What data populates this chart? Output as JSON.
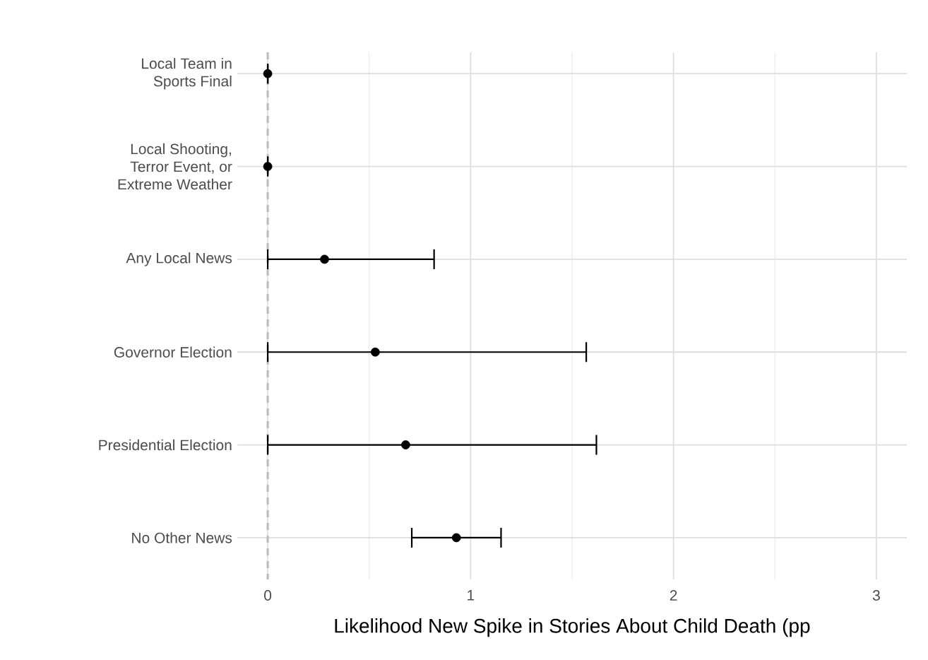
{
  "chart_data": {
    "type": "scatter",
    "orientation": "horizontal",
    "marker": "circle",
    "grid": true,
    "xlabel": "Likelihood New Spike in Stories About Child Death (pp",
    "categories": [
      "Local Team in Sports Final",
      "Local Shooting, Terror Event, or Extreme Weather",
      "Any Local News",
      "Governor Election",
      "Presidential Election",
      "No Other News"
    ],
    "values": [
      0,
      0,
      0.28,
      0.53,
      0.68,
      0.93
    ],
    "errors": [
      [
        0,
        0
      ],
      [
        0,
        0
      ],
      [
        0,
        0.82
      ],
      [
        0,
        1.57
      ],
      [
        0,
        1.62
      ],
      [
        0.71,
        1.15
      ]
    ],
    "color": "#000000",
    "xlim": [
      -0.15,
      3.15
    ],
    "xticks": [
      0,
      1,
      2,
      3
    ],
    "ref_lines": [
      {
        "axis": "x",
        "value": 0,
        "color": "#bebebe",
        "line_style": "dashed"
      }
    ]
  }
}
